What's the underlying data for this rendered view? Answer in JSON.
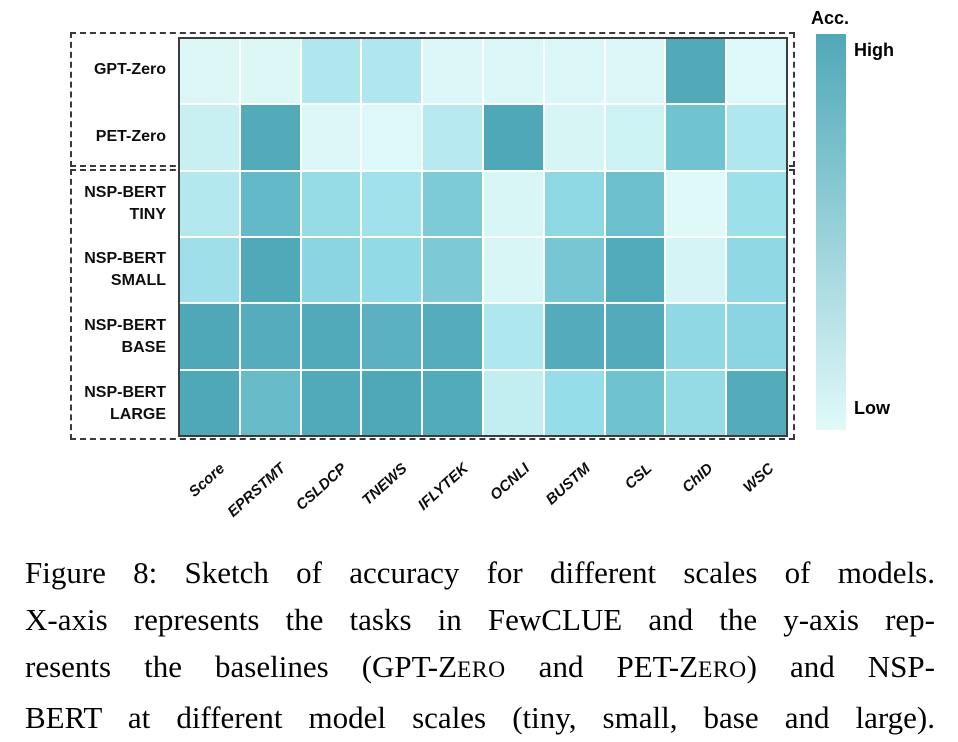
{
  "chart_data": {
    "type": "heatmap",
    "title": "Sketch of accuracy for different scales of models",
    "xlabel": "",
    "ylabel": "",
    "columns": [
      "Score",
      "EPRSTMT",
      "CSLDCP",
      "TNEWS",
      "IFLYTEK",
      "OCNLI",
      "BUSTM",
      "CSL",
      "ChID",
      "WSC"
    ],
    "rows": [
      "GPT-Zero",
      "PET-Zero",
      "NSP-BERT\nTINY",
      "NSP-BERT\nSMALL",
      "NSP-BERT\nBASE",
      "NSP-BERT\nLARGE"
    ],
    "series": [
      {
        "name": "GPT-Zero",
        "values": [
          0.03,
          0.03,
          0.33,
          0.33,
          0.04,
          0.04,
          0.04,
          0.04,
          0.97,
          0.03
        ]
      },
      {
        "name": "PET-Zero",
        "values": [
          0.17,
          0.96,
          0.04,
          0.03,
          0.31,
          1.0,
          0.06,
          0.14,
          0.77,
          0.35
        ]
      },
      {
        "name": "NSP-BERT TINY",
        "values": [
          0.32,
          0.86,
          0.51,
          0.42,
          0.67,
          0.05,
          0.57,
          0.8,
          0.02,
          0.47
        ]
      },
      {
        "name": "NSP-BERT SMALL",
        "values": [
          0.46,
          0.99,
          0.59,
          0.52,
          0.67,
          0.05,
          0.73,
          0.98,
          0.09,
          0.56
        ]
      },
      {
        "name": "NSP-BERT BASE",
        "values": [
          1.0,
          0.97,
          0.99,
          0.92,
          0.97,
          0.35,
          0.97,
          0.98,
          0.55,
          0.6
        ]
      },
      {
        "name": "NSP-BERT LARGE",
        "values": [
          1.0,
          0.83,
          0.99,
          1.0,
          0.98,
          0.21,
          0.52,
          0.78,
          0.53,
          0.97
        ]
      }
    ],
    "cell_colors": [
      [
        "#ddf7f7",
        "#ddf7f7",
        "#b0e7ee",
        "#b0e7ee",
        "#dcf7f8",
        "#dcf7f8",
        "#dbf7f7",
        "#dbf7f7",
        "#52a9b8",
        "#ddf8f8"
      ],
      [
        "#c8f0f2",
        "#53abba",
        "#dcf7f8",
        "#ddf8f8",
        "#b7eaf0",
        "#4fa8b8",
        "#d8f5f6",
        "#cdf2f4",
        "#70c3d0",
        "#aee7ee"
      ],
      [
        "#b3e8ee",
        "#64b9c8",
        "#96dce7",
        "#a0e1eb",
        "#7ecbd8",
        "#d9f6f7",
        "#8ed8e3",
        "#6cc0cd",
        "#dff8f8",
        "#9ce0ea"
      ],
      [
        "#9edfe9",
        "#50a9b9",
        "#8bd5e2",
        "#92dae5",
        "#7ec9d6",
        "#d9f6f7",
        "#77c6d3",
        "#52abbb",
        "#d4f4f6",
        "#8fd8e4"
      ],
      [
        "#4fa8b8",
        "#54acbc",
        "#51aab9",
        "#5bb1c1",
        "#54acbc",
        "#aee8ee",
        "#54abbb",
        "#53abba",
        "#90d9e4",
        "#8ad5e1"
      ],
      [
        "#4fa8b8",
        "#68bcca",
        "#51aab9",
        "#4fa8b8",
        "#52abba",
        "#c2eef2",
        "#95dde8",
        "#6fc3d0",
        "#94dbe6",
        "#54abba"
      ]
    ],
    "value_range": [
      0,
      1
    ],
    "grid": false,
    "legend_position": "right",
    "group_boxes": [
      {
        "rows": [
          0,
          1
        ],
        "description": "zero-shot baselines group"
      },
      {
        "rows": [
          2,
          5
        ],
        "description": "NSP-BERT model scales group"
      }
    ]
  },
  "colorbar": {
    "title": "Acc.",
    "high_label": "High",
    "low_label": "Low",
    "high_color": "#4fa8b8",
    "low_color": "#e1f9f9"
  },
  "caption": {
    "lines": [
      "Figure 8: Sketch of accuracy for different scales of models.",
      "X-axis represents the tasks in FewCLUE and the y-axis rep-",
      "resents the baselines (GPT-ZERO and PET-ZERO) and NSP-",
      "BERT at different model scales (tiny, small, base and large)."
    ]
  }
}
